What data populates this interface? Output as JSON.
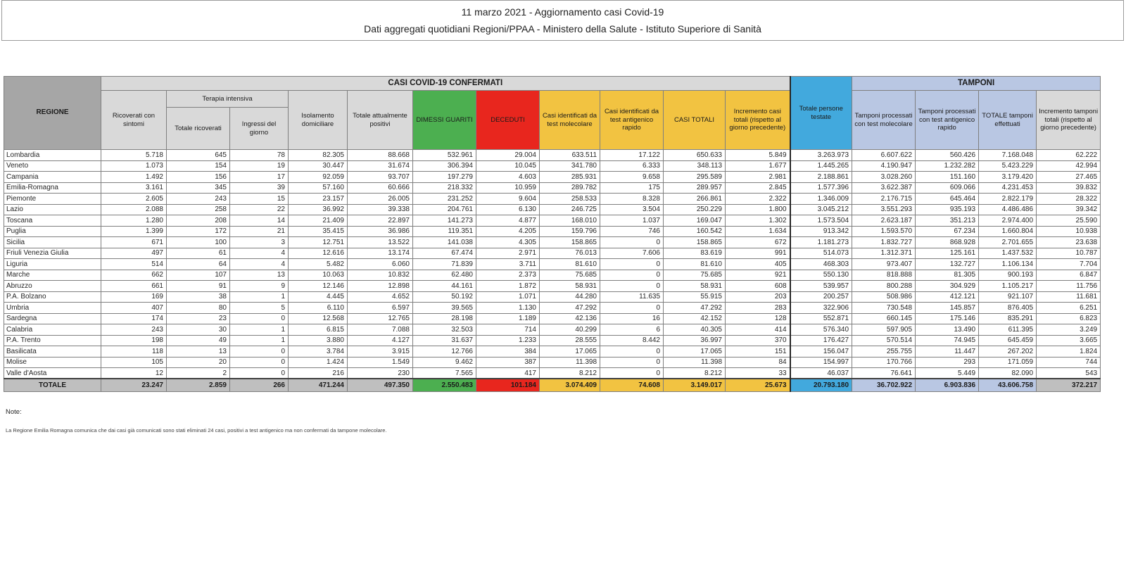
{
  "page": {
    "title_line1": "11 marzo 2021 - Aggiornamento casi Covid-19",
    "title_line2": "Dati aggregati quotidiani Regioni/PPAA - Ministero della Salute - Istituto Superiore di Sanità"
  },
  "colors": {
    "header_gray": "#d9d9d9",
    "regione_gray": "#a6a6a6",
    "total_gray": "#bfbfbf",
    "green": "#4caf50",
    "red": "#e8261e",
    "yellow": "#f2c341",
    "blue": "#42a9dd",
    "periwinkle": "#b9c7e3"
  },
  "table": {
    "group_headers": {
      "confirmed": "CASI COVID-19 CONFERMATI",
      "tamponi": "TAMPONI",
      "terapia_intensiva": "Terapia intensiva"
    },
    "columns": [
      "REGIONE",
      "Ricoverati con sintomi",
      "Totale ricoverati",
      "Ingressi del giorno",
      "Isolamento domiciliare",
      "Totale attualmente positivi",
      "DIMESSI GUARITI",
      "DECEDUTI",
      "Casi identificati da test molecolare",
      "Casi identificati da test antigenico rapido",
      "CASI TOTALI",
      "Incremento casi totali (rispetto al giorno precedente)",
      "Totale persone testate",
      "Tamponi processati con test molecolare",
      "Tamponi processati con test antigenico rapido",
      "TOTALE tamponi effettuati",
      "Incremento tamponi totali (rispetto al giorno precedente)"
    ],
    "rows": [
      {
        "region": "Lombardia",
        "values": [
          "5.718",
          "645",
          "78",
          "82.305",
          "88.668",
          "532.961",
          "29.004",
          "633.511",
          "17.122",
          "650.633",
          "5.849",
          "3.263.973",
          "6.607.622",
          "560.426",
          "7.168.048",
          "62.222"
        ]
      },
      {
        "region": "Veneto",
        "values": [
          "1.073",
          "154",
          "19",
          "30.447",
          "31.674",
          "306.394",
          "10.045",
          "341.780",
          "6.333",
          "348.113",
          "1.677",
          "1.445.265",
          "4.190.947",
          "1.232.282",
          "5.423.229",
          "42.994"
        ]
      },
      {
        "region": "Campania",
        "values": [
          "1.492",
          "156",
          "17",
          "92.059",
          "93.707",
          "197.279",
          "4.603",
          "285.931",
          "9.658",
          "295.589",
          "2.981",
          "2.188.861",
          "3.028.260",
          "151.160",
          "3.179.420",
          "27.465"
        ]
      },
      {
        "region": "Emilia-Romagna",
        "values": [
          "3.161",
          "345",
          "39",
          "57.160",
          "60.666",
          "218.332",
          "10.959",
          "289.782",
          "175",
          "289.957",
          "2.845",
          "1.577.396",
          "3.622.387",
          "609.066",
          "4.231.453",
          "39.832"
        ]
      },
      {
        "region": "Piemonte",
        "values": [
          "2.605",
          "243",
          "15",
          "23.157",
          "26.005",
          "231.252",
          "9.604",
          "258.533",
          "8.328",
          "266.861",
          "2.322",
          "1.346.009",
          "2.176.715",
          "645.464",
          "2.822.179",
          "28.322"
        ]
      },
      {
        "region": "Lazio",
        "values": [
          "2.088",
          "258",
          "22",
          "36.992",
          "39.338",
          "204.761",
          "6.130",
          "246.725",
          "3.504",
          "250.229",
          "1.800",
          "3.045.212",
          "3.551.293",
          "935.193",
          "4.486.486",
          "39.342"
        ]
      },
      {
        "region": "Toscana",
        "values": [
          "1.280",
          "208",
          "14",
          "21.409",
          "22.897",
          "141.273",
          "4.877",
          "168.010",
          "1.037",
          "169.047",
          "1.302",
          "1.573.504",
          "2.623.187",
          "351.213",
          "2.974.400",
          "25.590"
        ]
      },
      {
        "region": "Puglia",
        "values": [
          "1.399",
          "172",
          "21",
          "35.415",
          "36.986",
          "119.351",
          "4.205",
          "159.796",
          "746",
          "160.542",
          "1.634",
          "913.342",
          "1.593.570",
          "67.234",
          "1.660.804",
          "10.938"
        ]
      },
      {
        "region": "Sicilia",
        "values": [
          "671",
          "100",
          "3",
          "12.751",
          "13.522",
          "141.038",
          "4.305",
          "158.865",
          "0",
          "158.865",
          "672",
          "1.181.273",
          "1.832.727",
          "868.928",
          "2.701.655",
          "23.638"
        ]
      },
      {
        "region": "Friuli Venezia Giulia",
        "values": [
          "497",
          "61",
          "4",
          "12.616",
          "13.174",
          "67.474",
          "2.971",
          "76.013",
          "7.606",
          "83.619",
          "991",
          "514.073",
          "1.312.371",
          "125.161",
          "1.437.532",
          "10.787"
        ]
      },
      {
        "region": "Liguria",
        "values": [
          "514",
          "64",
          "4",
          "5.482",
          "6.060",
          "71.839",
          "3.711",
          "81.610",
          "0",
          "81.610",
          "405",
          "468.303",
          "973.407",
          "132.727",
          "1.106.134",
          "7.704"
        ]
      },
      {
        "region": "Marche",
        "values": [
          "662",
          "107",
          "13",
          "10.063",
          "10.832",
          "62.480",
          "2.373",
          "75.685",
          "0",
          "75.685",
          "921",
          "550.130",
          "818.888",
          "81.305",
          "900.193",
          "6.847"
        ]
      },
      {
        "region": "Abruzzo",
        "values": [
          "661",
          "91",
          "9",
          "12.146",
          "12.898",
          "44.161",
          "1.872",
          "58.931",
          "0",
          "58.931",
          "608",
          "539.957",
          "800.288",
          "304.929",
          "1.105.217",
          "11.756"
        ]
      },
      {
        "region": "P.A. Bolzano",
        "values": [
          "169",
          "38",
          "1",
          "4.445",
          "4.652",
          "50.192",
          "1.071",
          "44.280",
          "11.635",
          "55.915",
          "203",
          "200.257",
          "508.986",
          "412.121",
          "921.107",
          "11.681"
        ]
      },
      {
        "region": "Umbria",
        "values": [
          "407",
          "80",
          "5",
          "6.110",
          "6.597",
          "39.565",
          "1.130",
          "47.292",
          "0",
          "47.292",
          "283",
          "322.906",
          "730.548",
          "145.857",
          "876.405",
          "6.251"
        ]
      },
      {
        "region": "Sardegna",
        "values": [
          "174",
          "23",
          "0",
          "12.568",
          "12.765",
          "28.198",
          "1.189",
          "42.136",
          "16",
          "42.152",
          "128",
          "552.871",
          "660.145",
          "175.146",
          "835.291",
          "6.823"
        ]
      },
      {
        "region": "Calabria",
        "values": [
          "243",
          "30",
          "1",
          "6.815",
          "7.088",
          "32.503",
          "714",
          "40.299",
          "6",
          "40.305",
          "414",
          "576.340",
          "597.905",
          "13.490",
          "611.395",
          "3.249"
        ]
      },
      {
        "region": "P.A. Trento",
        "values": [
          "198",
          "49",
          "1",
          "3.880",
          "4.127",
          "31.637",
          "1.233",
          "28.555",
          "8.442",
          "36.997",
          "370",
          "176.427",
          "570.514",
          "74.945",
          "645.459",
          "3.665"
        ]
      },
      {
        "region": "Basilicata",
        "values": [
          "118",
          "13",
          "0",
          "3.784",
          "3.915",
          "12.766",
          "384",
          "17.065",
          "0",
          "17.065",
          "151",
          "156.047",
          "255.755",
          "11.447",
          "267.202",
          "1.824"
        ]
      },
      {
        "region": "Molise",
        "values": [
          "105",
          "20",
          "0",
          "1.424",
          "1.549",
          "9.462",
          "387",
          "11.398",
          "0",
          "11.398",
          "84",
          "154.997",
          "170.766",
          "293",
          "171.059",
          "744"
        ]
      },
      {
        "region": "Valle d'Aosta",
        "values": [
          "12",
          "2",
          "0",
          "216",
          "230",
          "7.565",
          "417",
          "8.212",
          "0",
          "8.212",
          "33",
          "46.037",
          "76.641",
          "5.449",
          "82.090",
          "543"
        ]
      }
    ],
    "total": {
      "label": "TOTALE",
      "values": [
        "23.247",
        "2.859",
        "266",
        "471.244",
        "497.350",
        "2.550.483",
        "101.184",
        "3.074.409",
        "74.608",
        "3.149.017",
        "25.673",
        "20.793.180",
        "36.702.922",
        "6.903.836",
        "43.606.758",
        "372.217"
      ]
    }
  },
  "notes": {
    "label": "Note:",
    "text": "La Regione Emilia Romagna comunica che dai casi già comunicati sono stati eliminati 24 casi, positivi a test antigenico ma non confermati da tampone molecolare."
  }
}
